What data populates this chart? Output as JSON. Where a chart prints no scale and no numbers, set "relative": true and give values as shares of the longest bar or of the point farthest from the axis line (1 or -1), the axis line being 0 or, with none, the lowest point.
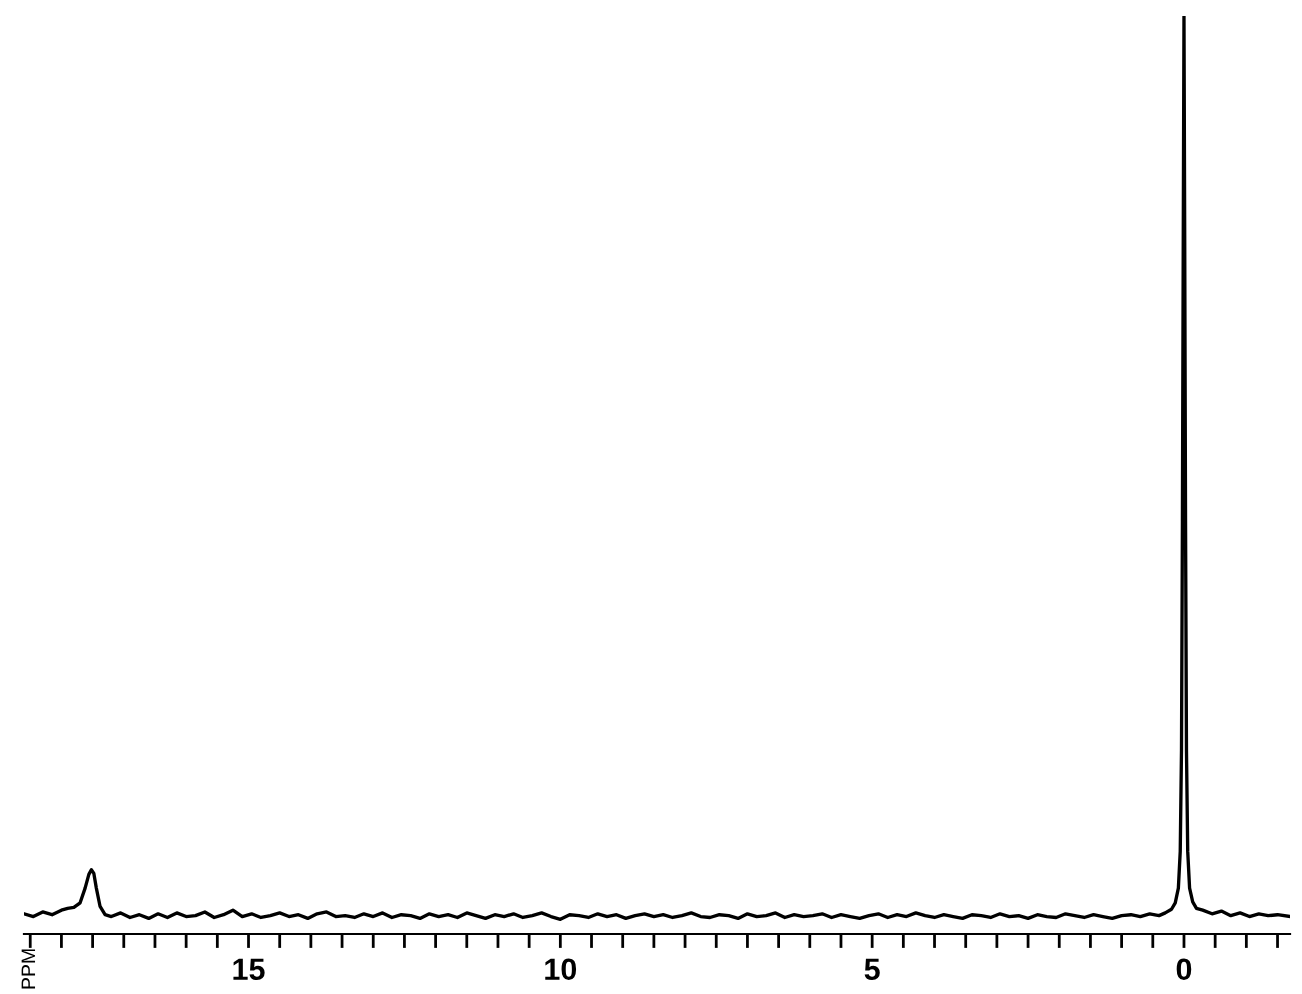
{
  "chart_data": {
    "type": "line",
    "relative": true,
    "annotations": [
      "PPM"
    ],
    "tick_labels": "x",
    "grid": false,
    "marker": "none",
    "line_style": "solid",
    "xlim": [
      18.6,
      -1.7
    ],
    "xticks": [
      {
        "value": 18.5,
        "label": null
      },
      {
        "value": 18,
        "label": null
      },
      {
        "value": 17.5,
        "label": null
      },
      {
        "value": 17,
        "label": null
      },
      {
        "value": 16.5,
        "label": null
      },
      {
        "value": 16,
        "label": null
      },
      {
        "value": 15.5,
        "label": null
      },
      15,
      {
        "value": 14.5,
        "label": null
      },
      {
        "value": 14,
        "label": null
      },
      {
        "value": 13.5,
        "label": null
      },
      {
        "value": 13,
        "label": null
      },
      {
        "value": 12.5,
        "label": null
      },
      {
        "value": 12,
        "label": null
      },
      {
        "value": 11.5,
        "label": null
      },
      {
        "value": 11,
        "label": null
      },
      {
        "value": 10.5,
        "label": null
      },
      10,
      {
        "value": 9.5,
        "label": null
      },
      {
        "value": 9,
        "label": null
      },
      {
        "value": 8.5,
        "label": null
      },
      {
        "value": 8,
        "label": null
      },
      {
        "value": 7.5,
        "label": null
      },
      {
        "value": 7,
        "label": null
      },
      {
        "value": 6.5,
        "label": null
      },
      {
        "value": 6,
        "label": null
      },
      {
        "value": 5.5,
        "label": null
      },
      5,
      {
        "value": 4.5,
        "label": null
      },
      {
        "value": 4,
        "label": null
      },
      {
        "value": 3.5,
        "label": null
      },
      {
        "value": 3,
        "label": null
      },
      {
        "value": 2.5,
        "label": null
      },
      {
        "value": 2,
        "label": null
      },
      {
        "value": 1.5,
        "label": null
      },
      {
        "value": 1,
        "label": null
      },
      {
        "value": 0.5,
        "label": null
      },
      0,
      {
        "value": -0.5,
        "label": null
      },
      {
        "value": -1,
        "label": null
      },
      {
        "value": -1.5,
        "label": null
      }
    ],
    "series": [
      {
        "color": "#000000",
        "x": [
          18.6,
          18.45,
          18.3,
          18.15,
          18.0,
          17.9,
          17.8,
          17.7,
          17.62,
          17.56,
          17.52,
          17.48,
          17.44,
          17.38,
          17.3,
          17.2,
          17.05,
          16.9,
          16.75,
          16.6,
          16.45,
          16.3,
          16.15,
          16.0,
          15.85,
          15.7,
          15.55,
          15.4,
          15.25,
          15.1,
          14.95,
          14.8,
          14.65,
          14.5,
          14.35,
          14.2,
          14.05,
          13.9,
          13.75,
          13.6,
          13.45,
          13.3,
          13.15,
          13.0,
          12.85,
          12.7,
          12.55,
          12.4,
          12.25,
          12.1,
          11.95,
          11.8,
          11.65,
          11.5,
          11.35,
          11.2,
          11.05,
          10.9,
          10.75,
          10.6,
          10.45,
          10.3,
          10.15,
          10.0,
          9.85,
          9.7,
          9.55,
          9.4,
          9.25,
          9.1,
          8.95,
          8.8,
          8.65,
          8.5,
          8.35,
          8.2,
          8.05,
          7.9,
          7.75,
          7.6,
          7.45,
          7.3,
          7.15,
          7.0,
          6.85,
          6.7,
          6.55,
          6.4,
          6.25,
          6.1,
          5.95,
          5.8,
          5.65,
          5.5,
          5.35,
          5.2,
          5.05,
          4.9,
          4.75,
          4.6,
          4.45,
          4.3,
          4.15,
          4.0,
          3.85,
          3.7,
          3.55,
          3.4,
          3.25,
          3.1,
          2.95,
          2.8,
          2.65,
          2.5,
          2.35,
          2.2,
          2.05,
          1.9,
          1.75,
          1.6,
          1.45,
          1.3,
          1.15,
          1.0,
          0.85,
          0.7,
          0.55,
          0.4,
          0.3,
          0.2,
          0.14,
          0.09,
          0.06,
          0.04,
          0.025,
          0.012,
          0.0,
          -0.012,
          -0.025,
          -0.04,
          -0.06,
          -0.09,
          -0.14,
          -0.2,
          -0.3,
          -0.45,
          -0.6,
          -0.75,
          -0.9,
          -1.05,
          -1.2,
          -1.35,
          -1.5,
          -1.7
        ],
        "values": [
          0.022,
          0.019,
          0.024,
          0.021,
          0.026,
          0.028,
          0.029,
          0.034,
          0.05,
          0.065,
          0.07,
          0.066,
          0.05,
          0.03,
          0.021,
          0.019,
          0.023,
          0.018,
          0.021,
          0.017,
          0.022,
          0.018,
          0.023,
          0.019,
          0.02,
          0.024,
          0.018,
          0.021,
          0.026,
          0.019,
          0.022,
          0.018,
          0.02,
          0.023,
          0.019,
          0.021,
          0.017,
          0.022,
          0.024,
          0.019,
          0.02,
          0.018,
          0.022,
          0.019,
          0.023,
          0.018,
          0.021,
          0.02,
          0.017,
          0.022,
          0.019,
          0.021,
          0.018,
          0.023,
          0.02,
          0.017,
          0.021,
          0.019,
          0.022,
          0.018,
          0.02,
          0.023,
          0.019,
          0.016,
          0.021,
          0.02,
          0.018,
          0.022,
          0.019,
          0.021,
          0.017,
          0.02,
          0.022,
          0.019,
          0.021,
          0.018,
          0.02,
          0.023,
          0.019,
          0.018,
          0.021,
          0.02,
          0.017,
          0.022,
          0.019,
          0.02,
          0.023,
          0.018,
          0.021,
          0.019,
          0.02,
          0.022,
          0.018,
          0.021,
          0.019,
          0.017,
          0.02,
          0.022,
          0.018,
          0.021,
          0.019,
          0.023,
          0.02,
          0.018,
          0.021,
          0.019,
          0.017,
          0.021,
          0.02,
          0.018,
          0.022,
          0.019,
          0.02,
          0.017,
          0.021,
          0.019,
          0.018,
          0.022,
          0.02,
          0.018,
          0.021,
          0.019,
          0.017,
          0.02,
          0.021,
          0.019,
          0.022,
          0.02,
          0.023,
          0.027,
          0.034,
          0.05,
          0.09,
          0.2,
          0.45,
          0.75,
          1.0,
          0.75,
          0.45,
          0.2,
          0.09,
          0.05,
          0.035,
          0.028,
          0.026,
          0.022,
          0.025,
          0.02,
          0.023,
          0.019,
          0.022,
          0.02,
          0.021,
          0.019
        ]
      }
    ]
  }
}
